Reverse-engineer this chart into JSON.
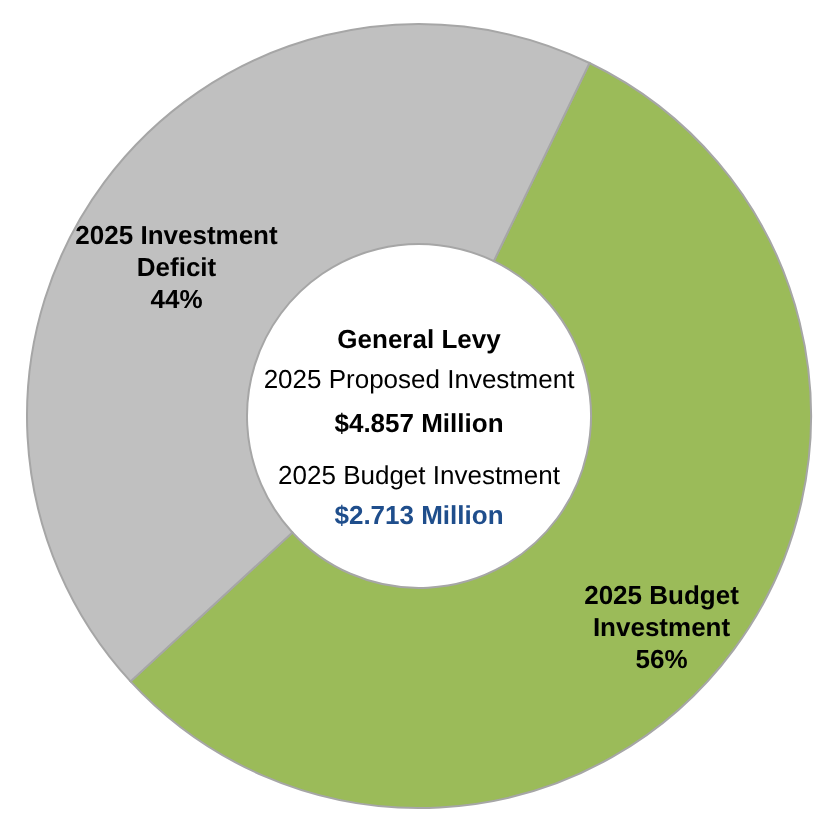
{
  "chart_data": {
    "type": "donut",
    "categories": [
      "2025 Budget Investment",
      "2025 Investment Deficit"
    ],
    "values": [
      56,
      44
    ],
    "colors": [
      "#9bbb59",
      "#c0c0c0"
    ],
    "value_labels": [
      "56%",
      "44%"
    ],
    "legend": false,
    "annotations": [
      "General Levy",
      "2025 Proposed Investment",
      "$4.857 Million",
      "2025 Budget Investment",
      "$2.713 Million"
    ]
  }
}
